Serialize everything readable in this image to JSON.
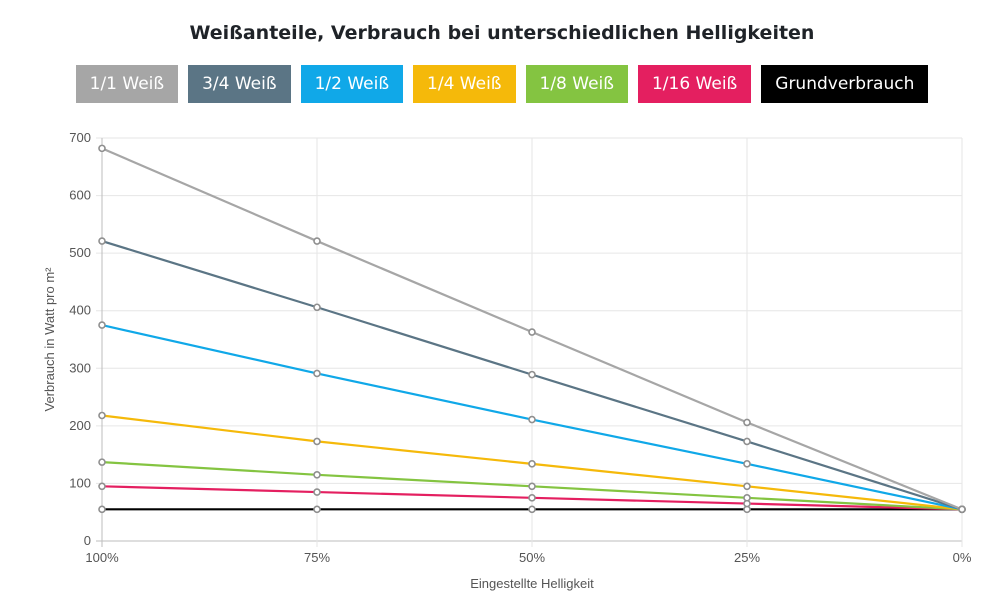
{
  "chart_data": {
    "type": "line",
    "title": "Weißanteile, Verbrauch bei unterschiedlichen Helligkeiten",
    "xlabel": "Eingestellte Helligkeit",
    "ylabel": "Verbrauch in Watt pro m²",
    "categories": [
      "100%",
      "75%",
      "50%",
      "25%",
      "0%"
    ],
    "ylim": [
      0,
      700
    ],
    "yticks": [
      0,
      100,
      200,
      300,
      400,
      500,
      600,
      700
    ],
    "grid": true,
    "legend_position": "top",
    "series": [
      {
        "name": "1/1 Weiß",
        "color": "#a6a6a6",
        "values": [
          682,
          521,
          363,
          206,
          55
        ]
      },
      {
        "name": "3/4 Weiß",
        "color": "#5b7585",
        "values": [
          521,
          406,
          289,
          173,
          55
        ]
      },
      {
        "name": "1/2 Weiß",
        "color": "#10a8e8",
        "values": [
          375,
          291,
          211,
          134,
          55
        ]
      },
      {
        "name": "1/4 Weiß",
        "color": "#f5b90a",
        "values": [
          218,
          173,
          134,
          95,
          55
        ]
      },
      {
        "name": "1/8 Weiß",
        "color": "#84c441",
        "values": [
          137,
          115,
          95,
          75,
          55
        ]
      },
      {
        "name": "1/16 Weiß",
        "color": "#e41f60",
        "values": [
          95,
          85,
          75,
          65,
          55
        ]
      },
      {
        "name": "Grundverbrauch",
        "color": "#000000",
        "values": [
          55,
          55,
          55,
          55,
          55
        ]
      }
    ]
  }
}
